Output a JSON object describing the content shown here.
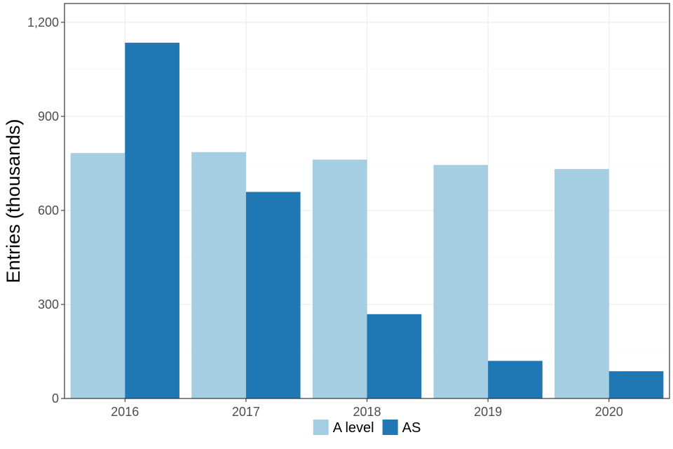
{
  "chart_data": {
    "type": "bar",
    "title": "",
    "xlabel": "",
    "ylabel": "Entries (thousands)",
    "categories": [
      "2016",
      "2017",
      "2018",
      "2019",
      "2020"
    ],
    "series": [
      {
        "name": "A level",
        "color": "#a6cee3",
        "values": [
          783,
          786,
          762,
          745,
          732
        ]
      },
      {
        "name": "AS",
        "color": "#1f78b4",
        "values": [
          1135,
          659,
          269,
          120,
          87
        ]
      }
    ],
    "ylim": [
      0,
      1260
    ],
    "yticks": [
      0,
      300,
      600,
      900,
      1200
    ],
    "ytick_labels": [
      "0",
      "300",
      "600",
      "900",
      "1,200"
    ],
    "grid": true,
    "legend_position": "bottom"
  }
}
